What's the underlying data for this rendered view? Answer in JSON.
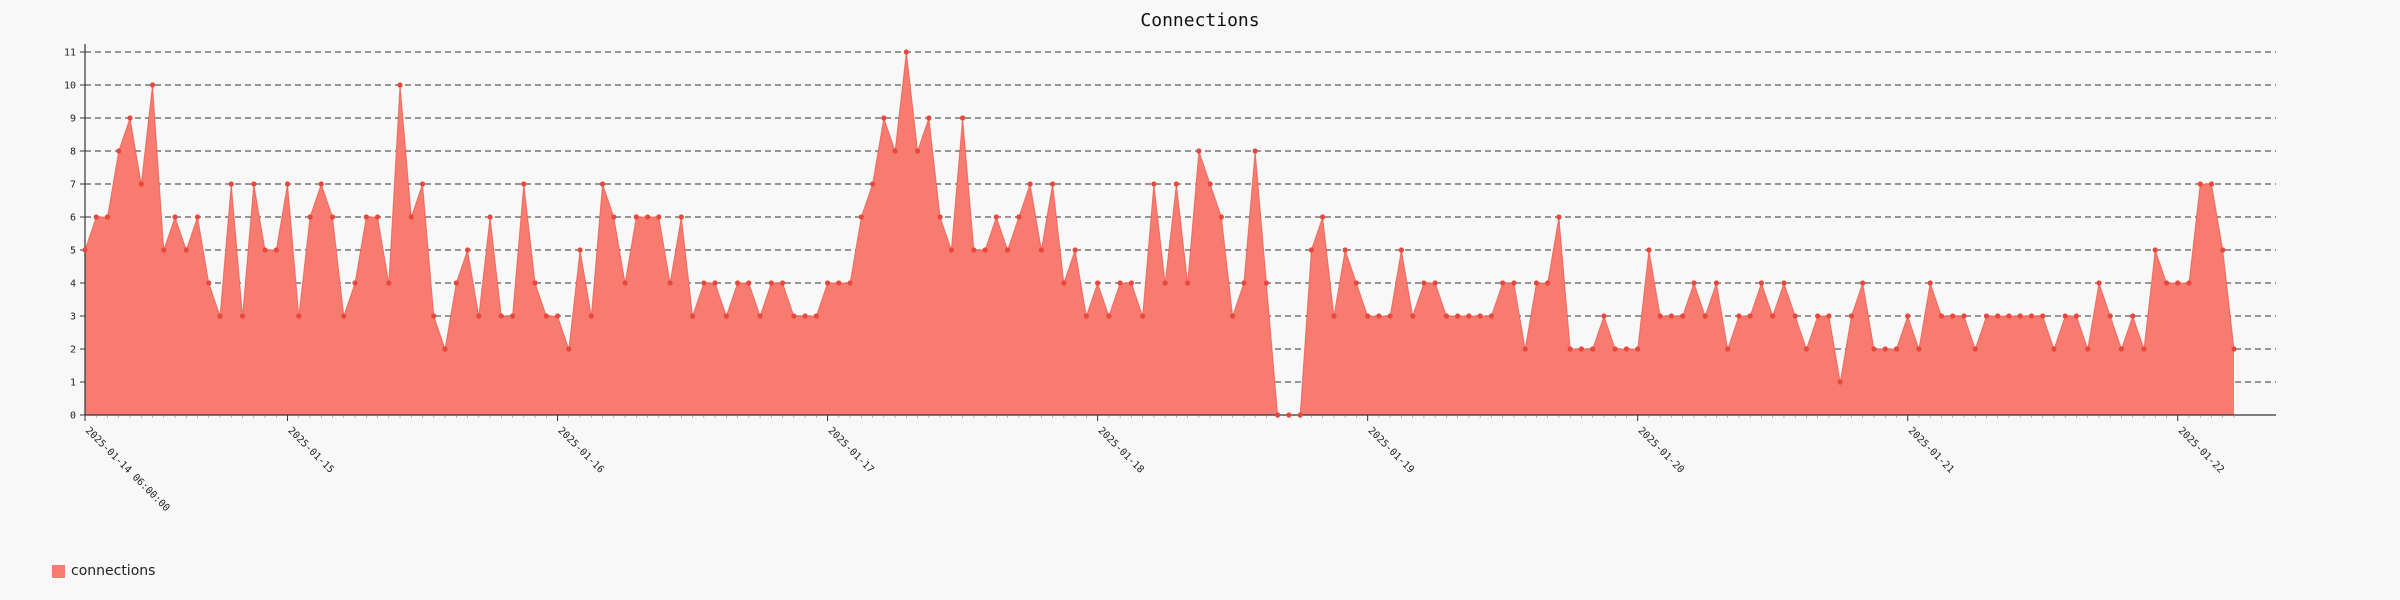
{
  "chart_data": {
    "type": "area",
    "title": "Connections",
    "xlabel": "",
    "ylabel": "",
    "ylim": [
      0,
      11
    ],
    "yticks": [
      0,
      1,
      2,
      3,
      4,
      5,
      6,
      7,
      8,
      9,
      10,
      11
    ],
    "grid": "horizontal-dashed",
    "legend_position": "bottom-left",
    "x_start": "2025-01-14 06:00",
    "x_step_hours": 1,
    "date_labels": [
      {
        "label": "2025-01-14 06:00:00",
        "index": 0
      },
      {
        "label": "2025-01-15",
        "index": 18
      },
      {
        "label": "2025-01-16",
        "index": 42
      },
      {
        "label": "2025-01-17",
        "index": 66
      },
      {
        "label": "2025-01-18",
        "index": 90
      },
      {
        "label": "2025-01-19",
        "index": 114
      },
      {
        "label": "2025-01-20",
        "index": 138
      },
      {
        "label": "2025-01-21",
        "index": 162
      },
      {
        "label": "2025-01-22",
        "index": 186
      }
    ],
    "series": [
      {
        "name": "connections",
        "color": "#f87b70",
        "point_color": "#e8483c",
        "values": [
          5,
          6,
          6,
          8,
          9,
          7,
          10,
          5,
          6,
          5,
          6,
          4,
          3,
          7,
          3,
          7,
          5,
          5,
          7,
          3,
          6,
          7,
          6,
          3,
          4,
          6,
          6,
          4,
          10,
          6,
          7,
          3,
          2,
          4,
          5,
          3,
          6,
          3,
          3,
          7,
          4,
          3,
          3,
          2,
          5,
          3,
          7,
          6,
          4,
          6,
          6,
          6,
          4,
          6,
          3,
          4,
          4,
          3,
          4,
          4,
          3,
          4,
          4,
          3,
          3,
          3,
          4,
          4,
          4,
          6,
          7,
          9,
          8,
          11,
          8,
          9,
          6,
          5,
          9,
          5,
          5,
          6,
          5,
          6,
          7,
          5,
          7,
          4,
          5,
          3,
          4,
          3,
          4,
          4,
          3,
          7,
          4,
          7,
          4,
          8,
          7,
          6,
          3,
          4,
          8,
          4,
          0,
          0,
          0,
          5,
          6,
          3,
          5,
          4,
          3,
          3,
          3,
          5,
          3,
          4,
          4,
          3,
          3,
          3,
          3,
          3,
          4,
          4,
          2,
          4,
          4,
          6,
          2,
          2,
          2,
          3,
          2,
          2,
          2,
          5,
          3,
          3,
          3,
          4,
          3,
          4,
          2,
          3,
          3,
          4,
          3,
          4,
          3,
          2,
          3,
          3,
          1,
          3,
          4,
          2,
          2,
          2,
          3,
          2,
          4,
          3,
          3,
          3,
          2,
          3,
          3,
          3,
          3,
          3,
          3,
          2,
          3,
          3,
          2,
          4,
          3,
          2,
          3,
          2,
          5,
          4,
          4,
          4,
          7,
          7,
          5,
          2
        ]
      }
    ]
  }
}
